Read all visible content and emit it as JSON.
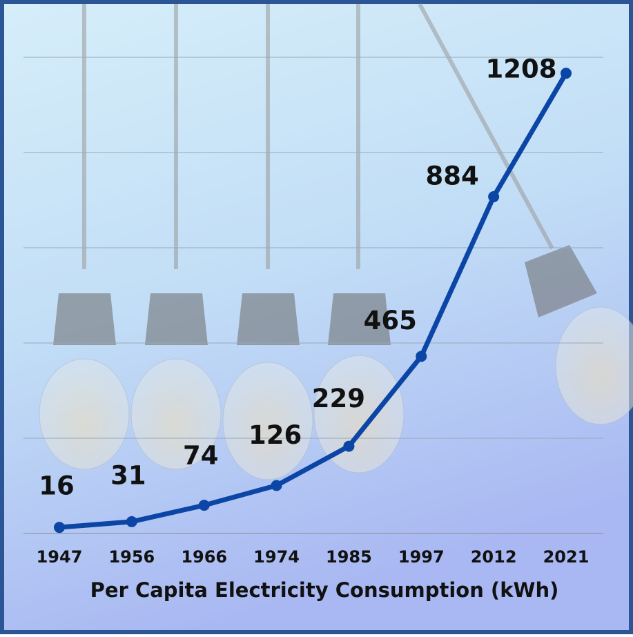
{
  "chart_data": {
    "type": "line",
    "title": "Per Capita Electricity Consumption (kWh)",
    "categories": [
      "1947",
      "1956",
      "1966",
      "1974",
      "1985",
      "1997",
      "2012",
      "2021"
    ],
    "series": [
      {
        "name": "Per Capita Electricity Consumption (kWh)",
        "color": "#0b45a6",
        "values": [
          16,
          31,
          74,
          126,
          229,
          465,
          884,
          1208
        ]
      }
    ],
    "ylim": [
      0,
      1250
    ],
    "yticks": [
      0,
      250,
      500,
      750,
      1000,
      1250
    ],
    "show_ytick_labels": false,
    "grid": true,
    "data_labels": true
  }
}
